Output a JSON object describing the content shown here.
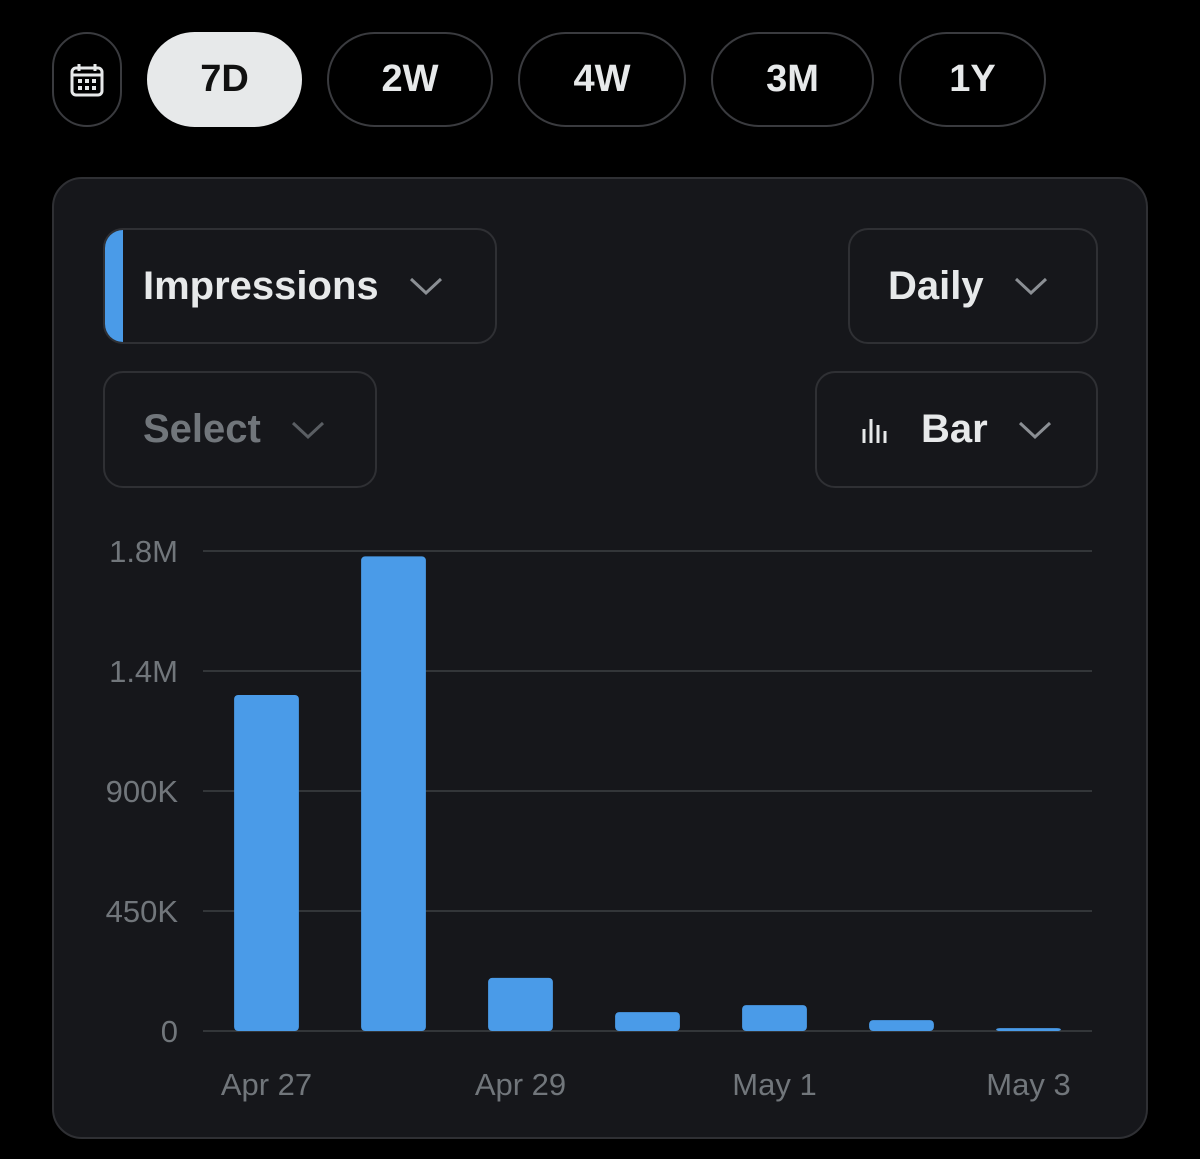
{
  "tabs": [
    "7D",
    "2W",
    "4W",
    "3M",
    "1Y"
  ],
  "metric": "Impressions",
  "interval": "Daily",
  "compare": "Select",
  "chart_style": "Bar",
  "chart_data": {
    "type": "bar",
    "categories": [
      "Apr 27",
      null,
      "Apr 29",
      null,
      "May 1",
      null,
      "May 3"
    ],
    "values": [
      1260000,
      1780000,
      199000,
      71000,
      97000,
      41000,
      11000
    ],
    "color": "#4a9be8",
    "ylim": [
      0,
      1800000
    ],
    "yticks": [
      0,
      {
        "value": 450000,
        "label": "450K"
      },
      {
        "value": 900000,
        "label": "900K"
      },
      {
        "value": 1350000,
        "label": "1.4M"
      },
      {
        "value": 1800000,
        "label": "1.8M"
      }
    ],
    "grid": true
  }
}
